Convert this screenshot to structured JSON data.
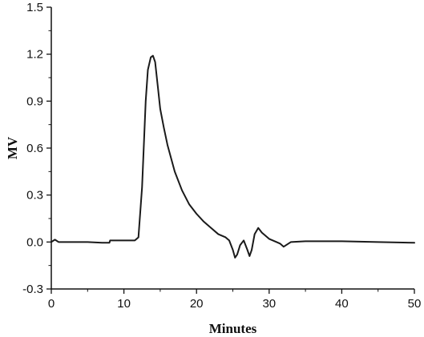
{
  "chart_data": {
    "type": "line",
    "title": "",
    "xlabel": "Minutes",
    "ylabel": "MV",
    "xlim": [
      0,
      50
    ],
    "ylim": [
      -0.3,
      1.5
    ],
    "x_ticks": [
      "0",
      "10",
      "20",
      "30",
      "40",
      "50"
    ],
    "y_ticks": [
      "-0.3",
      "0.0",
      "0.3",
      "0.6",
      "0.9",
      "1.2",
      "1.5"
    ],
    "grid": false,
    "line_color": "#1a1a1a",
    "series": [
      {
        "name": "",
        "x": [
          0,
          0.5,
          1,
          3,
          5,
          7,
          8,
          8.1,
          10,
          11.5,
          12,
          12.5,
          13,
          13.3,
          13.7,
          14,
          14.3,
          14.7,
          15,
          15.5,
          16,
          17,
          18,
          19,
          20,
          21,
          22,
          23,
          24,
          24.5,
          25,
          25.3,
          25.6,
          26,
          26.5,
          27,
          27.3,
          27.6,
          28,
          28.5,
          29,
          30,
          31,
          31.5,
          32,
          33,
          35,
          40,
          45,
          50
        ],
        "y": [
          0.0,
          0.015,
          0.0,
          0.0,
          0.0,
          -0.005,
          -0.005,
          0.01,
          0.01,
          0.01,
          0.03,
          0.35,
          0.9,
          1.1,
          1.18,
          1.19,
          1.15,
          0.98,
          0.85,
          0.73,
          0.62,
          0.45,
          0.33,
          0.24,
          0.18,
          0.13,
          0.09,
          0.05,
          0.03,
          0.01,
          -0.05,
          -0.1,
          -0.08,
          -0.02,
          0.01,
          -0.05,
          -0.09,
          -0.05,
          0.05,
          0.09,
          0.06,
          0.02,
          0.0,
          -0.01,
          -0.03,
          0.0,
          0.005,
          0.005,
          0.0,
          -0.005
        ]
      }
    ]
  }
}
